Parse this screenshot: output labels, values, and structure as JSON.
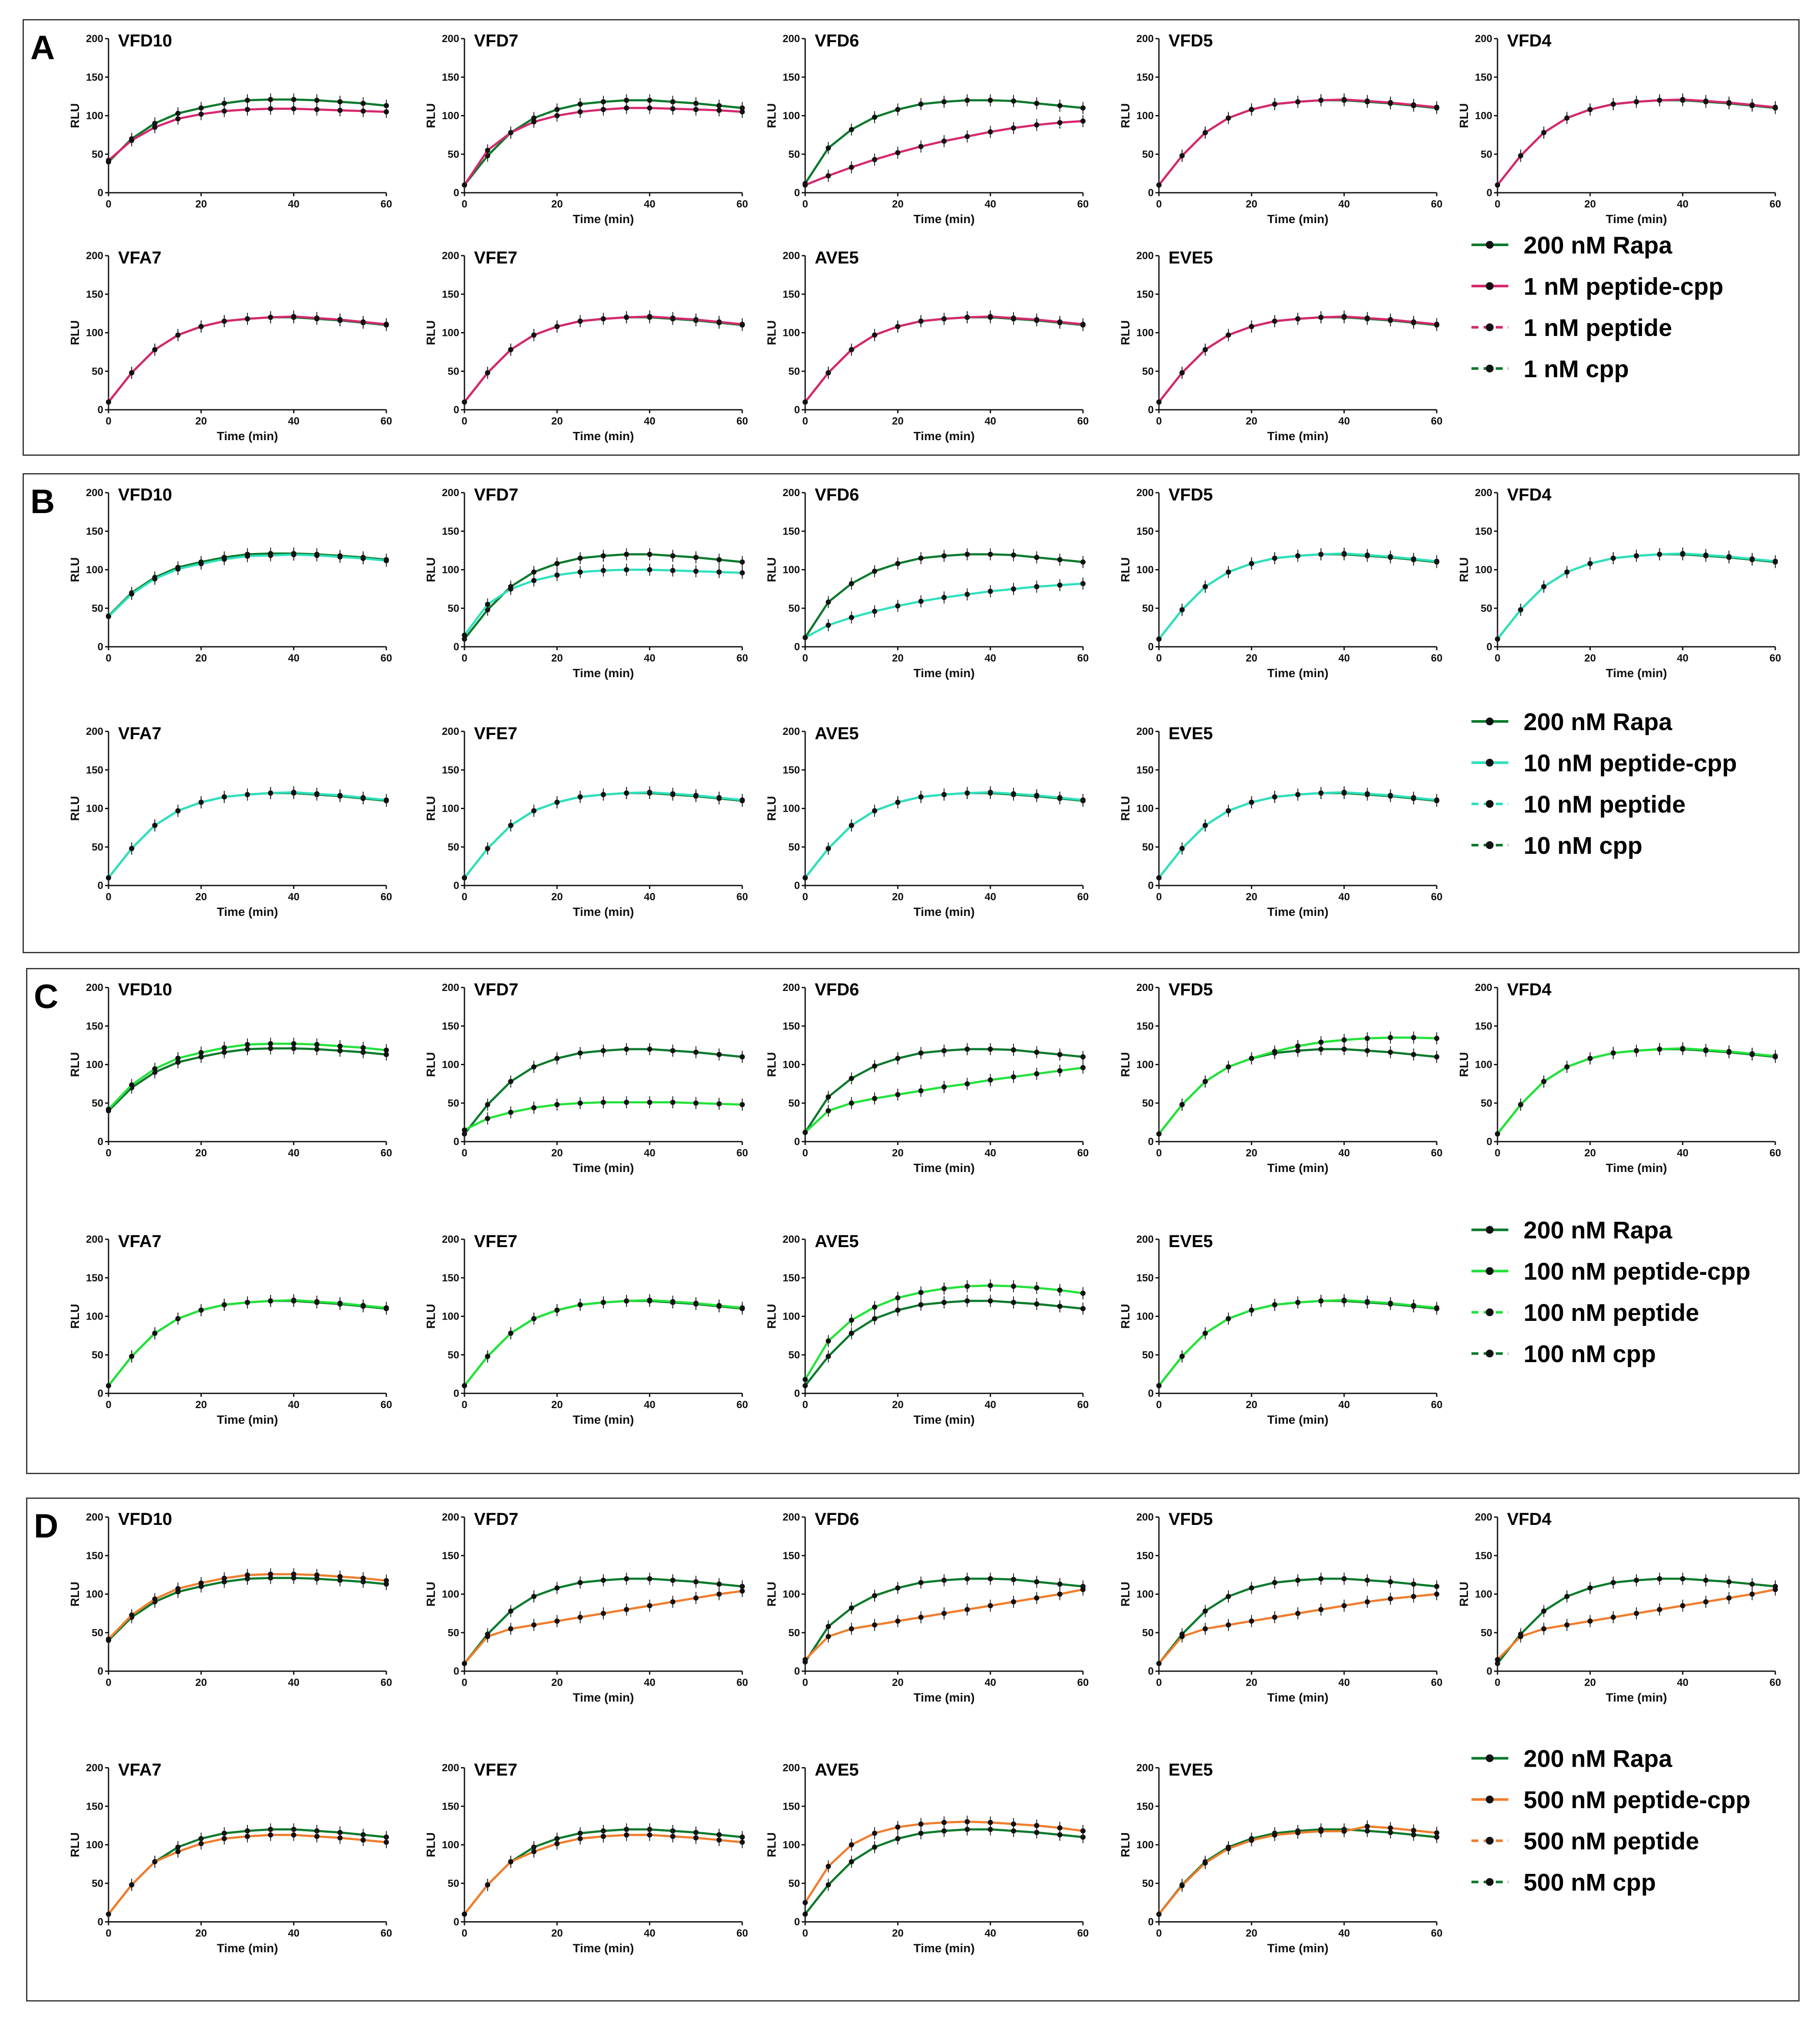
{
  "figure": {
    "panels": [
      {
        "letter": "A",
        "colors": {
          "rapa": "#0b7a2c",
          "treat": "#d6286f"
        },
        "legend": [
          "200 nM Rapa",
          "1 nM peptide-cpp",
          "1 nM peptide",
          "1 nM cpp"
        ]
      },
      {
        "letter": "B",
        "colors": {
          "rapa": "#0b7a2c",
          "treat": "#2fe0bd"
        },
        "legend": [
          "200 nM Rapa",
          "10 nM peptide-cpp",
          "10 nM peptide",
          "10 nM cpp"
        ]
      },
      {
        "letter": "C",
        "colors": {
          "rapa": "#0b7a2c",
          "treat": "#22e23a"
        },
        "legend": [
          "200 nM Rapa",
          "100 nM peptide-cpp",
          "100 nM peptide",
          "100 nM cpp"
        ]
      },
      {
        "letter": "D",
        "colors": {
          "rapa": "#0b7a2c",
          "treat": "#f07d2d"
        },
        "legend": [
          "200 nM Rapa",
          "500 nM peptide-cpp",
          "500 nM peptide",
          "500 nM cpp"
        ]
      }
    ]
  },
  "chart_data": {
    "type": "line",
    "panels": [
      "A",
      "B",
      "C",
      "D"
    ],
    "subplots_per_panel": [
      "VFD10",
      "VFD7",
      "VFD6",
      "VFD5",
      "VFD4",
      "VFA7",
      "VFE7",
      "AVE5",
      "EVE5"
    ],
    "ylabel": "RLU",
    "xlabel": "Time (min)",
    "xlim": [
      0,
      60
    ],
    "ylim": [
      0,
      200
    ],
    "xticks": [
      "0",
      "20",
      "40",
      "60"
    ],
    "yticks": [
      "0",
      "50",
      "100",
      "150",
      "200"
    ],
    "x": [
      0,
      5,
      10,
      15,
      20,
      25,
      30,
      35,
      40,
      45,
      50,
      55,
      60
    ],
    "reference": {
      "name": "200 nM Rapa",
      "VFD10": [
        40,
        70,
        90,
        103,
        110,
        116,
        120,
        121,
        121,
        120,
        118,
        116,
        113
      ],
      "VFD6": [
        12,
        58,
        82,
        98,
        108,
        115,
        118,
        120,
        120,
        119,
        116,
        113,
        110
      ],
      "typical": [
        10,
        48,
        78,
        97,
        108,
        115,
        118,
        120,
        120,
        118,
        116,
        113,
        110
      ]
    },
    "treated_peptide_cpp": {
      "A": {
        "VFD10": [
          42,
          68,
          85,
          96,
          102,
          106,
          108,
          109,
          109,
          108,
          107,
          106,
          105
        ],
        "VFD7": [
          10,
          55,
          78,
          92,
          100,
          105,
          108,
          110,
          110,
          109,
          108,
          107,
          105
        ],
        "VFD6": [
          10,
          22,
          33,
          43,
          52,
          60,
          67,
          73,
          79,
          84,
          88,
          91,
          93
        ]
      },
      "B": {
        "VFD7": [
          15,
          55,
          75,
          86,
          93,
          97,
          99,
          100,
          100,
          99,
          98,
          97,
          96
        ],
        "VFD6": [
          12,
          28,
          38,
          46,
          53,
          59,
          64,
          68,
          72,
          75,
          78,
          80,
          82
        ]
      },
      "C": {
        "VFD7": [
          15,
          30,
          38,
          44,
          48,
          50,
          51,
          51,
          51,
          51,
          50,
          49,
          48
        ],
        "VFD6": [
          12,
          40,
          50,
          56,
          61,
          66,
          71,
          75,
          80,
          84,
          88,
          92,
          96
        ],
        "VFD5": [
          10,
          48,
          78,
          97,
          108,
          117,
          124,
          129,
          132,
          134,
          135,
          135,
          134
        ],
        "AVE5": [
          18,
          68,
          95,
          112,
          124,
          131,
          136,
          139,
          140,
          139,
          137,
          134,
          130
        ]
      },
      "D": {
        "VFD7": [
          10,
          45,
          55,
          60,
          65,
          70,
          75,
          80,
          85,
          90,
          95,
          100,
          104
        ],
        "VFD6": [
          15,
          45,
          55,
          60,
          65,
          70,
          75,
          80,
          85,
          90,
          95,
          100,
          106
        ],
        "VFD5": [
          10,
          45,
          55,
          60,
          65,
          70,
          75,
          80,
          85,
          90,
          94,
          97,
          100
        ],
        "VFD4": [
          15,
          45,
          55,
          60,
          65,
          70,
          75,
          80,
          85,
          90,
          95,
          100,
          106
        ],
        "AVE5": [
          25,
          72,
          100,
          115,
          123,
          127,
          129,
          130,
          129,
          127,
          125,
          122,
          118
        ]
      }
    },
    "legend_entries": [
      "200 nM Rapa",
      "peptide-cpp",
      "peptide",
      "cpp"
    ]
  }
}
